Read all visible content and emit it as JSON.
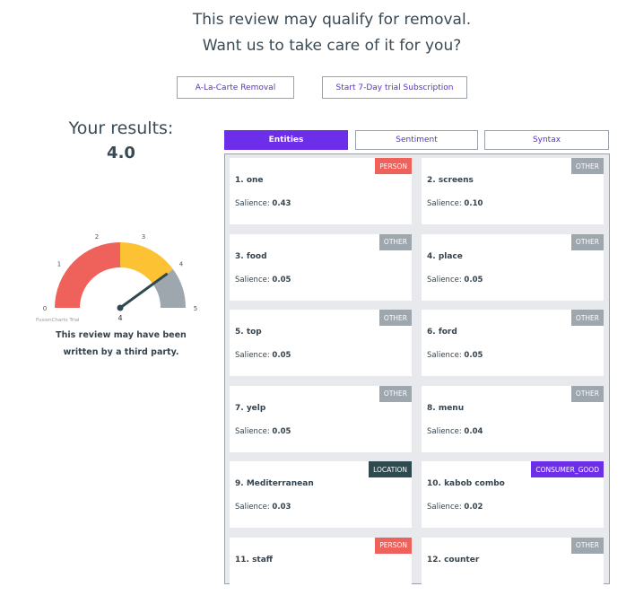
{
  "header": {
    "line1": "This review may qualify for removal.",
    "line2": "Want us to take care of it for you?"
  },
  "buttons": {
    "alacarte": "A-La-Carte Removal",
    "trial": "Start 7-Day trial Subscription"
  },
  "results": {
    "label": "Your results:",
    "score": "4.0"
  },
  "gauge": {
    "min": 0,
    "max": 5,
    "value": 4,
    "value_label": "4",
    "ticks": [
      "0",
      "1",
      "2",
      "3",
      "4",
      "5"
    ],
    "watermark": "FusionCharts Trial",
    "bands": [
      {
        "from": 0,
        "to": 2.5,
        "color": "#ef615b"
      },
      {
        "from": 2.5,
        "to": 4,
        "color": "#fdc233"
      },
      {
        "from": 4,
        "to": 5,
        "color": "#9ea6ae"
      }
    ]
  },
  "caption": {
    "line1": "This review may have been",
    "line2": "written by a third party."
  },
  "tabs": [
    {
      "label": "Entities",
      "active": true
    },
    {
      "label": "Sentiment"
    },
    {
      "label": "Syntax"
    }
  ],
  "salience_label": "Salience:",
  "badge_colors": {
    "PERSON": "#ef615b",
    "OTHER": "#9ea6ae",
    "LOCATION": "#2f4a4e",
    "CONSUMER_GOOD": "#6c2ee8"
  },
  "entities": [
    {
      "title": "1. one",
      "type": "PERSON",
      "salience": "0.43"
    },
    {
      "title": "2. screens",
      "type": "OTHER",
      "salience": "0.10"
    },
    {
      "title": "3. food",
      "type": "OTHER",
      "salience": "0.05"
    },
    {
      "title": "4. place",
      "type": "OTHER",
      "salience": "0.05"
    },
    {
      "title": "5. top",
      "type": "OTHER",
      "salience": "0.05"
    },
    {
      "title": "6. ford",
      "type": "OTHER",
      "salience": "0.05"
    },
    {
      "title": "7. yelp",
      "type": "OTHER",
      "salience": "0.05"
    },
    {
      "title": "8. menu",
      "type": "OTHER",
      "salience": "0.04"
    },
    {
      "title": "9. Mediterranean",
      "type": "LOCATION",
      "salience": "0.03"
    },
    {
      "title": "10. kabob combo",
      "type": "CONSUMER_GOOD",
      "salience": "0.02"
    },
    {
      "title": "11. staff",
      "type": "PERSON",
      "salience": ""
    },
    {
      "title": "12. counter",
      "type": "OTHER",
      "salience": ""
    }
  ]
}
